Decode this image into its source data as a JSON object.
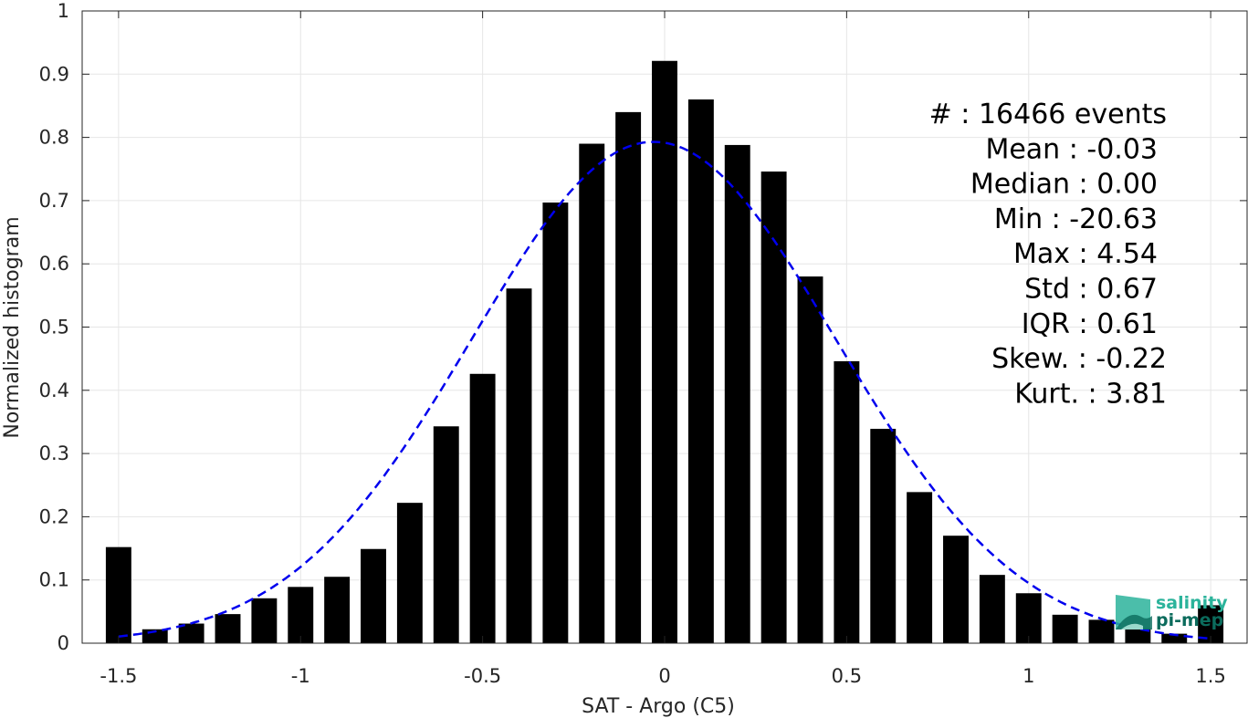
{
  "chart_data": {
    "type": "bar",
    "xlabel": "SAT - Argo (C5)",
    "ylabel": "Normalized histogram",
    "xlim": [
      -1.6,
      1.6
    ],
    "ylim": [
      0,
      1
    ],
    "grid": true,
    "x_ticks": [
      -1.5,
      -1,
      -0.5,
      0,
      0.5,
      1,
      1.5
    ],
    "x_tick_labels": [
      "-1.5",
      "-1",
      "-0.5",
      "0",
      "0.5",
      "1",
      "1.5"
    ],
    "y_ticks": [
      0,
      0.1,
      0.2,
      0.3,
      0.4,
      0.5,
      0.6,
      0.7,
      0.8,
      0.9,
      1
    ],
    "y_tick_labels": [
      "0",
      "0.1",
      "0.2",
      "0.3",
      "0.4",
      "0.5",
      "0.6",
      "0.7",
      "0.8",
      "0.9",
      "1"
    ],
    "bar_color": "#000000",
    "bar_width": 0.07,
    "bars": {
      "x": [
        -1.5,
        -1.4,
        -1.3,
        -1.2,
        -1.1,
        -1.0,
        -0.9,
        -0.8,
        -0.7,
        -0.6,
        -0.5,
        -0.4,
        -0.3,
        -0.2,
        -0.1,
        0.0,
        0.1,
        0.2,
        0.3,
        0.4,
        0.5,
        0.6,
        0.7,
        0.8,
        0.9,
        1.0,
        1.1,
        1.2,
        1.3,
        1.4,
        1.5
      ],
      "values": [
        0.152,
        0.022,
        0.031,
        0.046,
        0.071,
        0.089,
        0.105,
        0.149,
        0.222,
        0.343,
        0.426,
        0.561,
        0.697,
        0.79,
        0.84,
        0.921,
        0.86,
        0.788,
        0.746,
        0.58,
        0.446,
        0.339,
        0.239,
        0.17,
        0.108,
        0.079,
        0.045,
        0.037,
        0.024,
        0.015,
        0.06
      ]
    },
    "fit_curve": {
      "type": "gaussian",
      "style": "dashed",
      "color": "#0000ee",
      "mu": -0.03,
      "sigma": 0.5,
      "peak": 0.793,
      "x_range": [
        -1.5,
        1.5
      ]
    },
    "stats": [
      "#  : 16466 events",
      "Mean : -0.03",
      "Median : 0.00",
      "Min : -20.63",
      "Max : 4.54",
      "Std : 0.67",
      "IQR : 0.61",
      "Skew. : -0.22",
      "Kurt. : 3.81"
    ]
  },
  "logo": {
    "line1": "salinity",
    "line2": "pi-mep",
    "color1": "#2bb39b",
    "color2": "#0b6b5c"
  }
}
